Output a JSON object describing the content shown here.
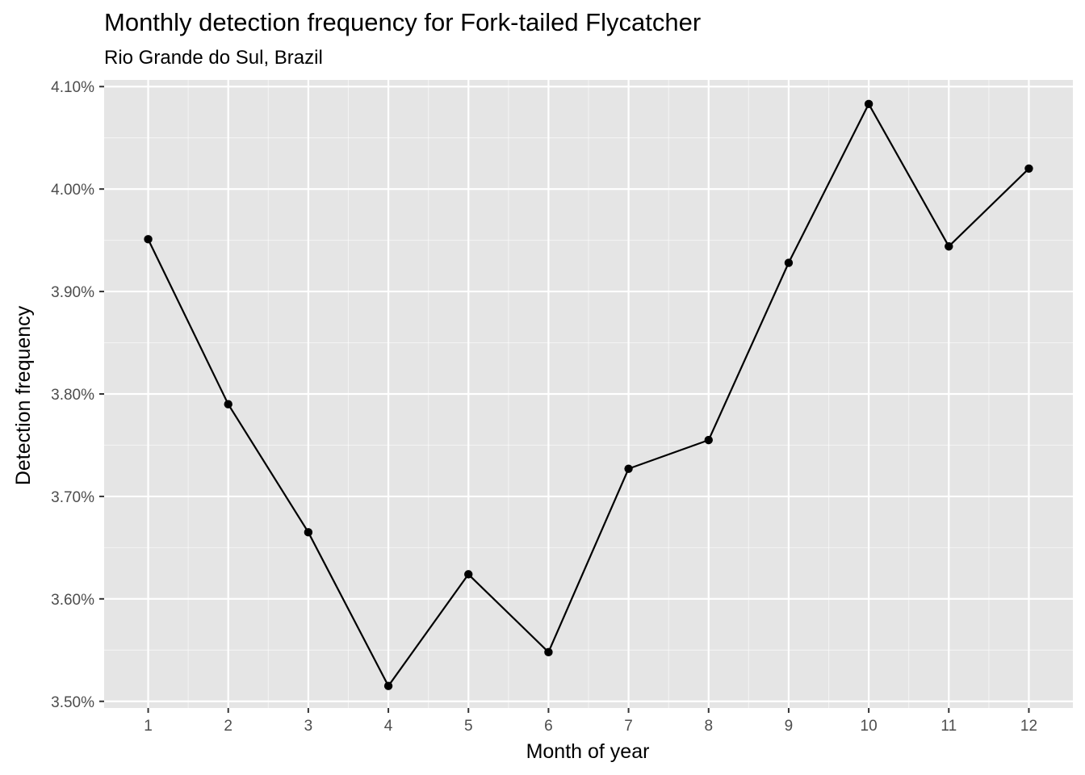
{
  "chart_data": {
    "type": "line",
    "title": "Monthly detection frequency for Fork-tailed Flycatcher",
    "subtitle": "Rio Grande do Sul, Brazil",
    "xlabel": "Month of year",
    "ylabel": "Detection frequency",
    "x": [
      1,
      2,
      3,
      4,
      5,
      6,
      7,
      8,
      9,
      10,
      11,
      12
    ],
    "values": [
      3.951,
      3.79,
      3.665,
      3.515,
      3.624,
      3.548,
      3.727,
      3.755,
      3.928,
      4.083,
      3.944,
      4.02
    ],
    "x_ticks": [
      "1",
      "2",
      "3",
      "4",
      "5",
      "6",
      "7",
      "8",
      "9",
      "10",
      "11",
      "12"
    ],
    "y_ticks": [
      {
        "value": 3.5,
        "label": "3.50%"
      },
      {
        "value": 3.6,
        "label": "3.60%"
      },
      {
        "value": 3.7,
        "label": "3.70%"
      },
      {
        "value": 3.8,
        "label": "3.80%"
      },
      {
        "value": 3.9,
        "label": "3.90%"
      },
      {
        "value": 4.0,
        "label": "4.00%"
      },
      {
        "value": 4.1,
        "label": "4.10%"
      }
    ],
    "xlim": [
      0.45,
      12.55
    ],
    "ylim": [
      3.4935,
      4.1065
    ],
    "grid": true,
    "colors": {
      "panel_background": "#e5e5e5",
      "grid_major": "#ffffff",
      "line": "#000000",
      "points": "#000000",
      "tick_text": "#4d4d4d",
      "tick_marks": "#333333"
    }
  }
}
